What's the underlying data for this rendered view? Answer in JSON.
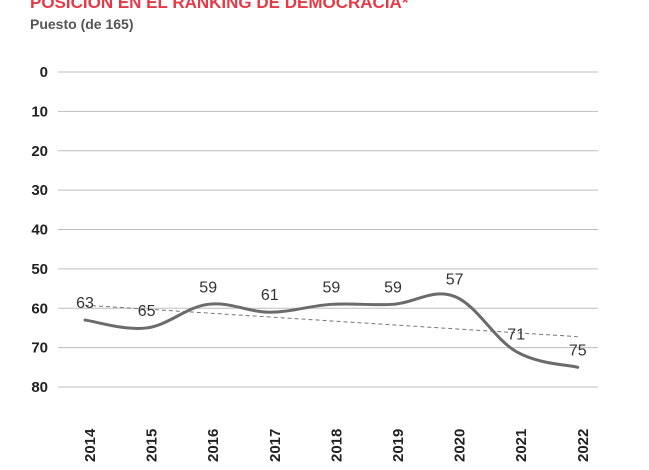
{
  "chart_data": {
    "type": "line",
    "title": "POSICIÓN EN EL RANKING DE DEMOCRACIA*",
    "subtitle": "Puesto (de 165)",
    "xlabel": "",
    "ylabel": "",
    "y_inverted": true,
    "ylim": [
      0,
      80
    ],
    "yticks": [
      "0",
      "10",
      "20",
      "30",
      "40",
      "50",
      "60",
      "70",
      "80"
    ],
    "categories": [
      "2014",
      "2015",
      "2016",
      "2017",
      "2018",
      "2019",
      "2020",
      "2021",
      "2022"
    ],
    "values": [
      63,
      65,
      59,
      61,
      59,
      59,
      57,
      71,
      75
    ],
    "data_labels": [
      "63",
      "65",
      "59",
      "61",
      "59",
      "59",
      "57",
      "71",
      "75"
    ],
    "trendline": true,
    "grid": true,
    "colors": {
      "title": "#e63946",
      "line": "#6b6b6b",
      "trend": "#777777",
      "grid": "#bdbdbd"
    }
  }
}
